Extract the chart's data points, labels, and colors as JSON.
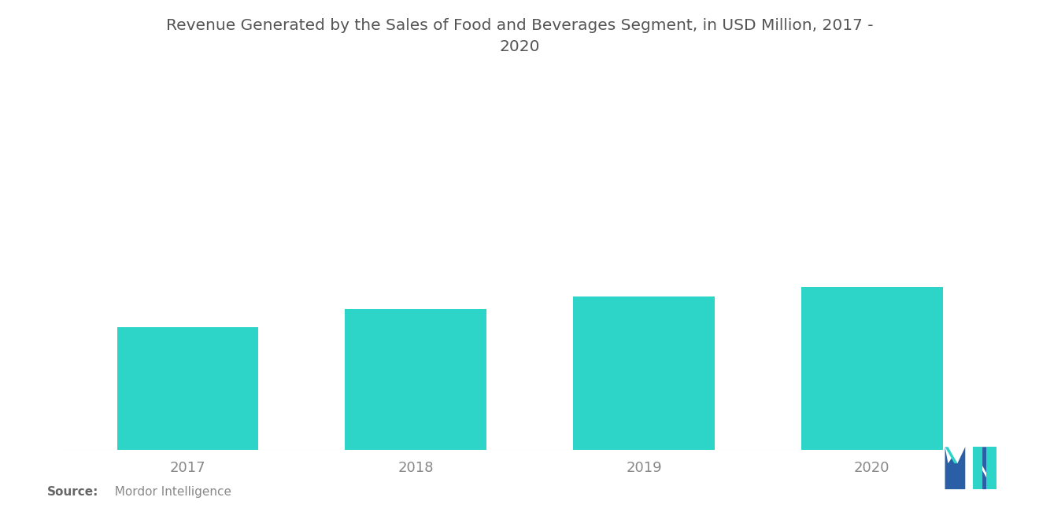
{
  "title_line1": "Revenue Generated by the Sales of Food and Beverages Segment, in USD Million, 2017 -",
  "title_line2": "2020",
  "categories": [
    "2017",
    "2018",
    "2019",
    "2020"
  ],
  "values": [
    100,
    115,
    125,
    133
  ],
  "bar_color": "#2DD4C8",
  "background_color": "#ffffff",
  "title_fontsize": 14.5,
  "tick_fontsize": 13,
  "source_bold": "Source:",
  "source_regular": "  Mordor Intelligence",
  "ylim": [
    0,
    175
  ],
  "bar_width": 0.62,
  "title_color": "#555555",
  "tick_color": "#888888"
}
